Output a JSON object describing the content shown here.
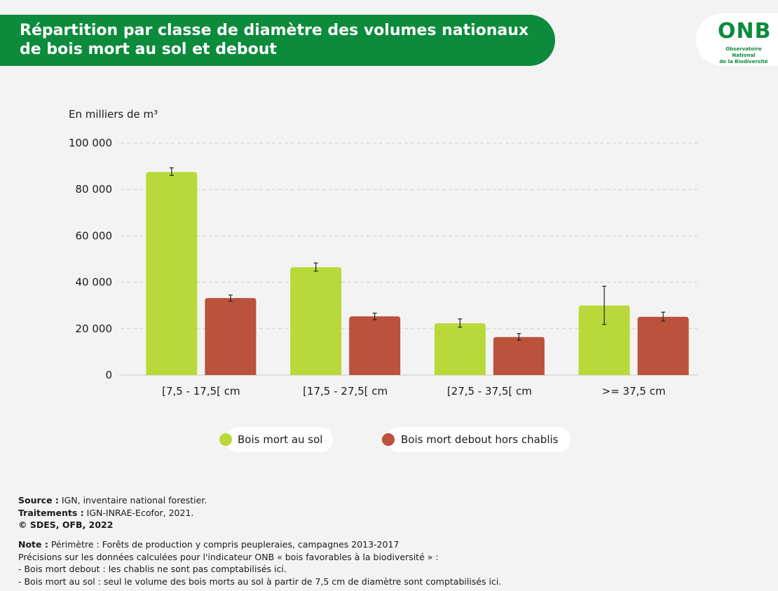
{
  "title": "Répartition par classe de diamètre des volumes nationaux\nde bois mort au sol et debout",
  "logo": {
    "word": "ONB",
    "subtitle_line1": "Observatoire National",
    "subtitle_line2": "de la Biodiversité"
  },
  "colors": {
    "banner": "#0c8b3c",
    "series_1": "#b9d93a",
    "series_2": "#bb523b",
    "background": "#f3f3f3"
  },
  "chart_data": {
    "type": "bar",
    "title": "",
    "ylabel": "En milliers de m³",
    "ylim": [
      0,
      100000
    ],
    "yticks": [
      0,
      20000,
      40000,
      60000,
      80000,
      100000
    ],
    "ytick_labels": [
      "0",
      "20 000",
      "40 000",
      "60 000",
      "80 000",
      "100 000"
    ],
    "grid": true,
    "categories": [
      "[7,5 - 17,5[ cm",
      "[17,5 - 27,5[ cm",
      "[27,5 - 37,5[ cm",
      ">= 37,5 cm"
    ],
    "series": [
      {
        "name": "Bois mort au sol",
        "values": [
          87500,
          46500,
          22300,
          30000
        ],
        "error_low": [
          86000,
          44800,
          20600,
          21800
        ],
        "error_high": [
          89300,
          48300,
          24200,
          38300
        ]
      },
      {
        "name": "Bois mort debout hors chablis",
        "values": [
          33200,
          25300,
          16400,
          25100
        ],
        "error_low": [
          31800,
          23900,
          15000,
          23300
        ],
        "error_high": [
          34500,
          26700,
          17900,
          27100
        ]
      }
    ],
    "legend_position": "bottom"
  },
  "source": {
    "source_label": "Source :",
    "source_text": " IGN, inventaire national forestier.",
    "treatments_label": "Traitements :",
    "treatments_text": " IGN-INRAE-Ecofor, 2021.",
    "copyright": "© SDES, OFB, 2022"
  },
  "note": {
    "label": "Note :",
    "line1": " Périmètre : Forêts de production y compris peupleraies, campagnes 2013-2017",
    "line2": "Précisions sur les données calculées pour l'indicateur ONB « bois favorables à la biodiversité » :",
    "line3": "- Bois mort debout : les chablis ne sont pas comptabilisés ici.",
    "line4": "- Bois mort au sol : seul le volume des bois morts au sol à partir de 7,5 cm de diamètre sont comptabilisés ici."
  }
}
